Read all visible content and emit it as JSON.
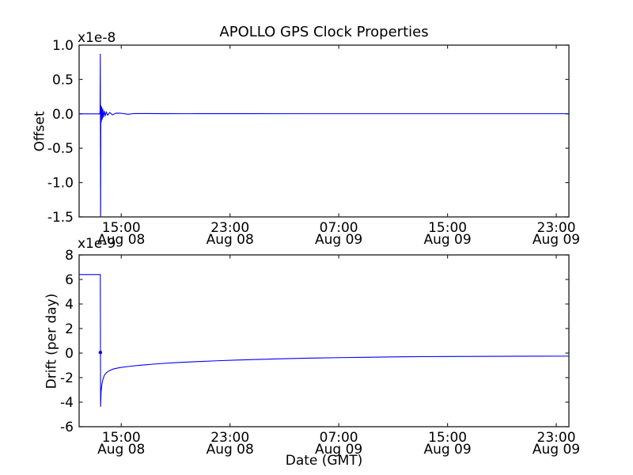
{
  "figure": {
    "title": "APOLLO GPS Clock Properties",
    "xlabel": "Date (GMT)",
    "background": "#ffffff",
    "axis_color": "#2a2a2a",
    "text_color": "#000000",
    "line_color": "#0000ff"
  },
  "chart_data": [
    {
      "type": "line",
      "ylabel": "Offset",
      "offset_text": "x1e-8",
      "xlim": [
        11.9,
        47.93
      ],
      "ylim": [
        -1.5,
        1.0
      ],
      "x_unit": "hours since Aug 08 00:00 GMT",
      "y_unit": "1e-8 seconds",
      "yticks": {
        "values": [
          1.0,
          0.5,
          0.0,
          -0.5,
          -1.0,
          -1.5
        ],
        "labels": [
          "1.0",
          "0.5",
          "0.0",
          "-0.5",
          "-1.0",
          "-1.5"
        ]
      },
      "xticks": {
        "values": [
          15,
          23,
          31,
          39,
          47
        ],
        "labels": [
          [
            "15:00",
            "Aug 08"
          ],
          [
            "23:00",
            "Aug 08"
          ],
          [
            "07:00",
            "Aug 09"
          ],
          [
            "15:00",
            "Aug 09"
          ],
          [
            "23:00",
            "Aug 09"
          ]
        ]
      },
      "series": [
        {
          "name": "offset",
          "color": "#0000ff",
          "points": [
            [
              11.9,
              0
            ],
            [
              13.42,
              0
            ],
            [
              13.44,
              0.05
            ],
            [
              13.46,
              0.87
            ],
            [
              13.48,
              -1.7
            ],
            [
              13.5,
              0.12
            ],
            [
              13.53,
              -0.12
            ],
            [
              13.56,
              0.1
            ],
            [
              13.6,
              -0.08
            ],
            [
              13.64,
              0.07
            ],
            [
              13.69,
              -0.05
            ],
            [
              13.75,
              0.04
            ],
            [
              13.82,
              -0.03
            ],
            [
              13.9,
              0.03
            ],
            [
              14.0,
              -0.02
            ],
            [
              14.15,
              0.02
            ],
            [
              14.35,
              -0.015
            ],
            [
              14.6,
              0.01
            ],
            [
              15.0,
              0.008
            ],
            [
              15.5,
              -0.006
            ],
            [
              16.0,
              0.005
            ],
            [
              17.0,
              0.004
            ],
            [
              18.0,
              0.003
            ],
            [
              20.0,
              0.002
            ],
            [
              24.0,
              0.003
            ],
            [
              28.0,
              0.002
            ],
            [
              34.0,
              0.002
            ],
            [
              40.0,
              0.002
            ],
            [
              47.93,
              0.002
            ]
          ]
        }
      ]
    },
    {
      "type": "line",
      "ylabel": "Drift (per day)",
      "offset_text": "x1e-9",
      "xlim": [
        11.9,
        47.93
      ],
      "ylim": [
        -6,
        8
      ],
      "x_unit": "hours since Aug 08 00:00 GMT",
      "y_unit": "1e-9 per day",
      "yticks": {
        "values": [
          8,
          6,
          4,
          2,
          0,
          -2,
          -4,
          -6
        ],
        "labels": [
          "8",
          "6",
          "4",
          "2",
          "0",
          "-2",
          "-4",
          "-6"
        ]
      },
      "xticks": {
        "values": [
          15,
          23,
          31,
          39,
          47
        ],
        "labels": [
          [
            "15:00",
            "Aug 08"
          ],
          [
            "23:00",
            "Aug 08"
          ],
          [
            "07:00",
            "Aug 09"
          ],
          [
            "15:00",
            "Aug 09"
          ],
          [
            "23:00",
            "Aug 09"
          ]
        ]
      },
      "series": [
        {
          "name": "drift",
          "color": "#0000ff",
          "points": [
            [
              11.9,
              6.4
            ],
            [
              13.44,
              6.4
            ],
            [
              13.46,
              6.4
            ],
            [
              13.48,
              -4.35
            ],
            [
              13.52,
              -3.1
            ],
            [
              13.58,
              -2.5
            ],
            [
              13.66,
              -2.1
            ],
            [
              13.76,
              -1.8
            ],
            [
              13.9,
              -1.6
            ],
            [
              14.1,
              -1.45
            ],
            [
              14.4,
              -1.3
            ],
            [
              14.9,
              -1.18
            ],
            [
              15.6,
              -1.08
            ],
            [
              16.5,
              -0.98
            ],
            [
              17.7,
              -0.87
            ],
            [
              19.0,
              -0.78
            ],
            [
              20.5,
              -0.7
            ],
            [
              22.0,
              -0.63
            ],
            [
              23.5,
              -0.57
            ],
            [
              25.0,
              -0.52
            ],
            [
              26.5,
              -0.47
            ],
            [
              28.0,
              -0.43
            ],
            [
              29.5,
              -0.4
            ],
            [
              31.0,
              -0.37
            ],
            [
              33.0,
              -0.34
            ],
            [
              35.0,
              -0.31
            ],
            [
              37.0,
              -0.29
            ],
            [
              39.0,
              -0.28
            ],
            [
              41.0,
              -0.27
            ],
            [
              43.0,
              -0.26
            ],
            [
              45.0,
              -0.255
            ],
            [
              47.93,
              -0.25
            ]
          ]
        }
      ],
      "markers": [
        [
          13.465,
          0.05
        ]
      ]
    }
  ]
}
